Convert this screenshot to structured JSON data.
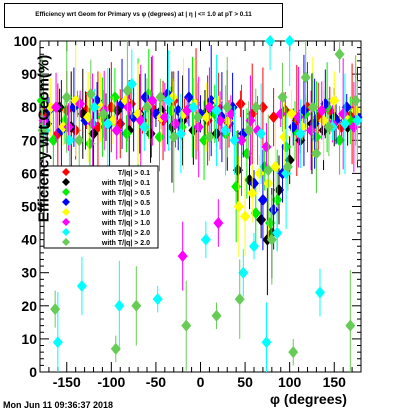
{
  "header": {
    "title": "Efficiency wrt Geom for Primary vs φ (degrees) at | η | <= 1.0 at pT > 0.11"
  },
  "footer": {
    "timestamp": "Mon Jun 11 09:36:37 2018"
  },
  "chart_data": {
    "type": "scatter",
    "title": "Efficiency wrt Geom for Primary vs φ (degrees) at | η | <= 1.0 at pT > 0.11",
    "xlabel": "φ (degrees)",
    "ylabel": "Efficiency wrt Geom(%)",
    "xlim": [
      -180,
      180
    ],
    "ylim": [
      0,
      100
    ],
    "xticks": [
      -150,
      -100,
      -50,
      0,
      50,
      100,
      150
    ],
    "yticks": [
      0,
      10,
      20,
      30,
      40,
      50,
      60,
      70,
      80,
      90,
      100
    ],
    "grid": false,
    "legend_position": "left-middle",
    "series": [
      {
        "name": "T/|q| > 0.1",
        "color": "#ff0000",
        "points": [
          [
            -175,
            78
          ],
          [
            -160,
            72
          ],
          [
            -150,
            79
          ],
          [
            -140,
            73
          ],
          [
            -128,
            79
          ],
          [
            -115,
            74
          ],
          [
            -100,
            80
          ],
          [
            -90,
            75
          ],
          [
            -78,
            81
          ],
          [
            -65,
            76
          ],
          [
            -55,
            80
          ],
          [
            -42,
            76
          ],
          [
            -30,
            82
          ],
          [
            -18,
            77
          ],
          [
            -5,
            81
          ],
          [
            8,
            76
          ],
          [
            20,
            80
          ],
          [
            32,
            75
          ],
          [
            45,
            81
          ],
          [
            58,
            78
          ],
          [
            70,
            80
          ],
          [
            82,
            77
          ],
          [
            95,
            79
          ],
          [
            108,
            76
          ],
          [
            120,
            80
          ],
          [
            132,
            77
          ],
          [
            145,
            79
          ],
          [
            158,
            74
          ],
          [
            170,
            78
          ]
        ]
      },
      {
        "name": "with T/|q| > 0.1",
        "color": "#000000",
        "points": [
          [
            -172,
            75
          ],
          [
            -158,
            80
          ],
          [
            -145,
            74
          ],
          [
            -132,
            78
          ],
          [
            -120,
            72
          ],
          [
            -106,
            77
          ],
          [
            -93,
            79
          ],
          [
            -80,
            73
          ],
          [
            -68,
            78
          ],
          [
            -56,
            72
          ],
          [
            -44,
            79
          ],
          [
            -32,
            74
          ],
          [
            -20,
            76
          ],
          [
            -8,
            73
          ],
          [
            5,
            78
          ],
          [
            18,
            72
          ],
          [
            30,
            76
          ],
          [
            42,
            61
          ],
          [
            55,
            58
          ],
          [
            68,
            46
          ],
          [
            75,
            40
          ],
          [
            80,
            42
          ],
          [
            88,
            55
          ],
          [
            100,
            64
          ],
          [
            112,
            70
          ],
          [
            125,
            75
          ],
          [
            138,
            73
          ],
          [
            150,
            77
          ],
          [
            165,
            74
          ]
        ]
      },
      {
        "name": "with T/|q| > 0.5",
        "color": "#00ee00",
        "points": [
          [
            -178,
            82
          ],
          [
            -165,
            70
          ],
          [
            -152,
            76
          ],
          [
            -138,
            81
          ],
          [
            -124,
            69
          ],
          [
            -110,
            77
          ],
          [
            -96,
            83
          ],
          [
            -83,
            72
          ],
          [
            -70,
            78
          ],
          [
            -58,
            84
          ],
          [
            -46,
            71
          ],
          [
            -33,
            79
          ],
          [
            -21,
            74
          ],
          [
            -9,
            80
          ],
          [
            4,
            70
          ],
          [
            16,
            78
          ],
          [
            28,
            72
          ],
          [
            40,
            56
          ],
          [
            52,
            66
          ],
          [
            62,
            48
          ],
          [
            72,
            62
          ],
          [
            78,
            45
          ],
          [
            86,
            52
          ],
          [
            96,
            68
          ],
          [
            106,
            73
          ],
          [
            118,
            78
          ],
          [
            130,
            71
          ],
          [
            142,
            80
          ],
          [
            156,
            70
          ],
          [
            168,
            76
          ]
        ]
      },
      {
        "name": "with T/|q| > 0.5",
        "color": "#0000ff",
        "points": [
          [
            -170,
            79
          ],
          [
            -156,
            73
          ],
          [
            -142,
            80
          ],
          [
            -129,
            76
          ],
          [
            -116,
            82
          ],
          [
            -102,
            75
          ],
          [
            -88,
            81
          ],
          [
            -75,
            77
          ],
          [
            -62,
            83
          ],
          [
            -50,
            78
          ],
          [
            -37,
            84
          ],
          [
            -25,
            79
          ],
          [
            -13,
            83
          ],
          [
            0,
            78
          ],
          [
            12,
            82
          ],
          [
            24,
            77
          ],
          [
            36,
            80
          ],
          [
            48,
            72
          ],
          [
            60,
            57
          ],
          [
            70,
            52
          ],
          [
            82,
            49
          ],
          [
            92,
            60
          ],
          [
            104,
            74
          ],
          [
            116,
            79
          ],
          [
            128,
            75
          ],
          [
            140,
            81
          ],
          [
            152,
            76
          ],
          [
            164,
            80
          ],
          [
            176,
            77
          ]
        ]
      },
      {
        "name": "with T/|q| > 1.0",
        "color": "#ffff00",
        "points": [
          [
            -168,
            80
          ],
          [
            -154,
            74
          ],
          [
            -140,
            82
          ],
          [
            -126,
            77
          ],
          [
            -112,
            80
          ],
          [
            -98,
            76
          ],
          [
            -84,
            82
          ],
          [
            -70,
            78
          ],
          [
            -57,
            81
          ],
          [
            -44,
            77
          ],
          [
            -31,
            83
          ],
          [
            -19,
            78
          ],
          [
            -6,
            81
          ],
          [
            7,
            77
          ],
          [
            19,
            82
          ],
          [
            31,
            76
          ],
          [
            43,
            50
          ],
          [
            50,
            47
          ],
          [
            58,
            54
          ],
          [
            66,
            60
          ],
          [
            76,
            57
          ],
          [
            84,
            62
          ],
          [
            94,
            71
          ],
          [
            102,
            78
          ],
          [
            114,
            74
          ],
          [
            126,
            80
          ],
          [
            138,
            76
          ],
          [
            150,
            82
          ],
          [
            162,
            77
          ],
          [
            174,
            79
          ]
        ]
      },
      {
        "name": "with T/|q| > 1.0",
        "color": "#ff00ff",
        "points": [
          [
            -176,
            76
          ],
          [
            -162,
            80
          ],
          [
            -148,
            74
          ],
          [
            -135,
            81
          ],
          [
            -121,
            75
          ],
          [
            -108,
            79
          ],
          [
            -94,
            73
          ],
          [
            -81,
            80
          ],
          [
            -67,
            76
          ],
          [
            -54,
            82
          ],
          [
            -40,
            77
          ],
          [
            -28,
            75
          ],
          [
            -15,
            79
          ],
          [
            -2,
            74
          ],
          [
            10,
            80
          ],
          [
            22,
            76
          ],
          [
            34,
            78
          ],
          [
            46,
            70
          ],
          [
            56,
            76
          ],
          [
            64,
            73
          ],
          [
            74,
            68
          ],
          [
            90,
            78
          ],
          [
            110,
            77
          ],
          [
            124,
            73
          ],
          [
            136,
            79
          ],
          [
            148,
            75
          ],
          [
            160,
            78
          ],
          [
            172,
            74
          ],
          [
            -20,
            35
          ],
          [
            20,
            45
          ]
        ]
      },
      {
        "name": "with T/|q| > 2.0",
        "color": "#00ffff",
        "points": [
          [
            -174,
            73
          ],
          [
            -160,
            9
          ],
          [
            -147,
            70
          ],
          [
            -133,
            26
          ],
          [
            -119,
            80
          ],
          [
            -104,
            75
          ],
          [
            -91,
            20
          ],
          [
            -77,
            87
          ],
          [
            -63,
            74
          ],
          [
            -48,
            22
          ],
          [
            -36,
            82
          ],
          [
            -22,
            72
          ],
          [
            -8,
            80
          ],
          [
            6,
            40
          ],
          [
            18,
            79
          ],
          [
            28,
            73
          ],
          [
            38,
            70
          ],
          [
            48,
            30
          ],
          [
            60,
            38
          ],
          [
            68,
            72
          ],
          [
            74,
            9
          ],
          [
            78,
            100
          ],
          [
            86,
            42
          ],
          [
            96,
            60
          ],
          [
            100,
            100
          ],
          [
            112,
            72
          ],
          [
            134,
            24
          ],
          [
            148,
            74
          ],
          [
            162,
            75
          ],
          [
            176,
            76
          ]
        ]
      },
      {
        "name": "with T/|q| > 2.0",
        "color": "#66cc55",
        "points": [
          [
            -177,
            73
          ],
          [
            -163,
            19
          ],
          [
            -150,
            83
          ],
          [
            -136,
            70
          ],
          [
            -123,
            84
          ],
          [
            -109,
            78
          ],
          [
            -95,
            7
          ],
          [
            -82,
            85
          ],
          [
            -72,
            20
          ],
          [
            -60,
            80
          ],
          [
            -45,
            83
          ],
          [
            -30,
            71
          ],
          [
            -16,
            14
          ],
          [
            -3,
            77
          ],
          [
            10,
            71
          ],
          [
            18,
            17
          ],
          [
            30,
            80
          ],
          [
            44,
            22
          ],
          [
            54,
            73
          ],
          [
            62,
            80
          ],
          [
            76,
            61
          ],
          [
            80,
            40
          ],
          [
            92,
            83
          ],
          [
            98,
            62
          ],
          [
            104,
            6
          ],
          [
            118,
            89
          ],
          [
            130,
            66
          ],
          [
            144,
            74
          ],
          [
            156,
            96
          ],
          [
            168,
            14
          ],
          [
            174,
            82
          ],
          [
            126,
            80
          ]
        ]
      }
    ]
  }
}
